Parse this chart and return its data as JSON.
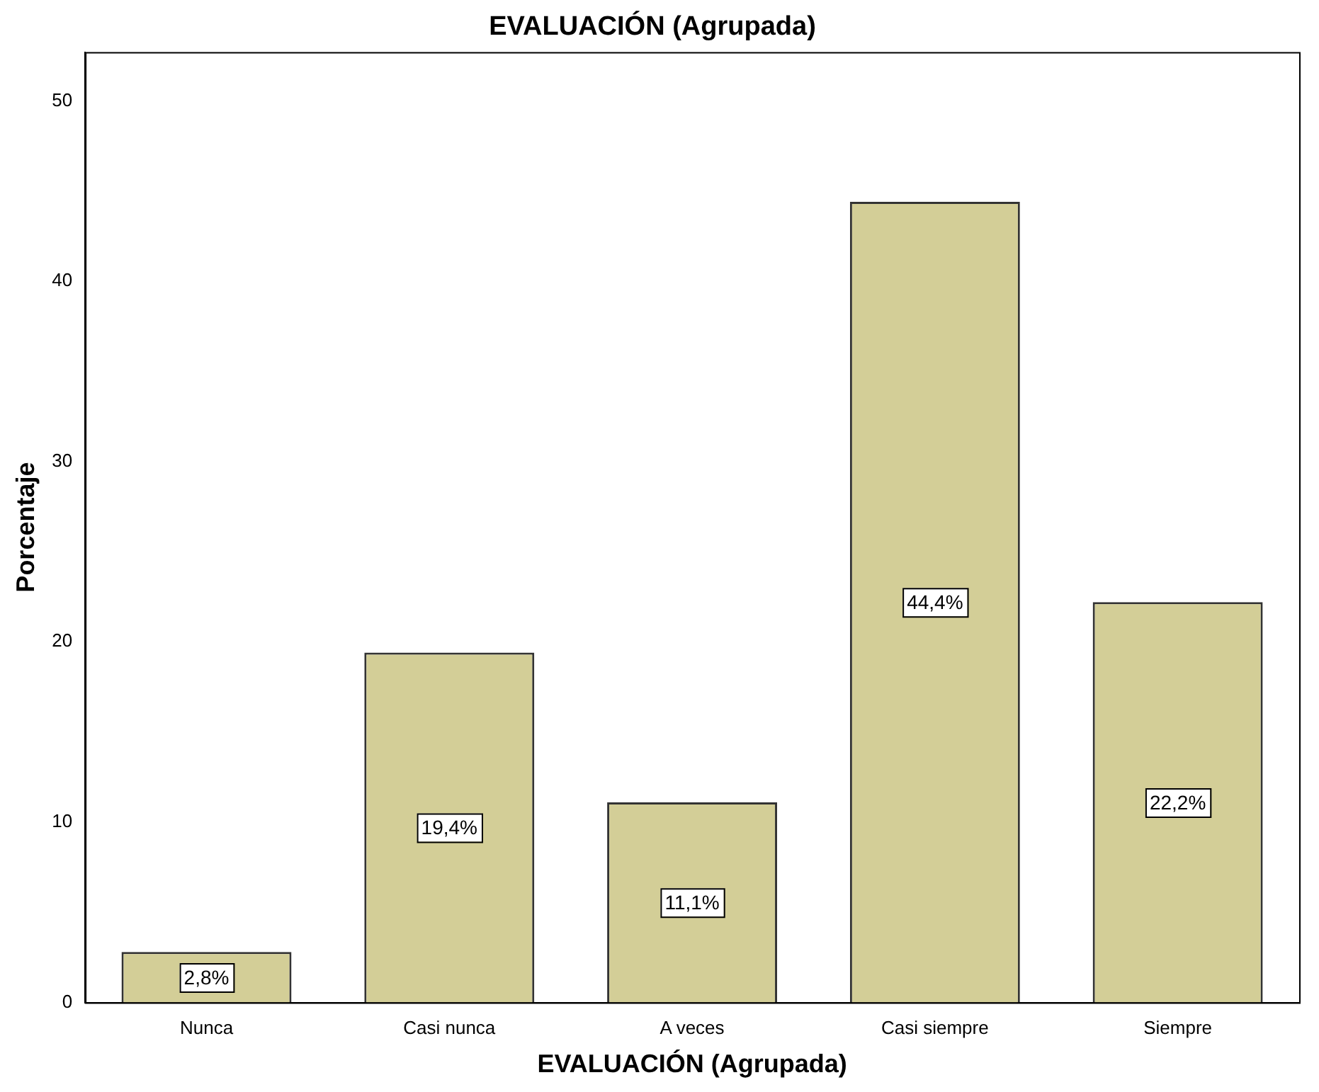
{
  "chart_data": {
    "type": "bar",
    "title": "EVALUACIÓN (Agrupada)",
    "xlabel": "EVALUACIÓN (Agrupada)",
    "ylabel": "Porcentaje",
    "categories": [
      "Nunca",
      "Casi nunca",
      "A veces",
      "Casi siempre",
      "Siempre"
    ],
    "values": [
      2.8,
      19.4,
      11.1,
      44.4,
      22.2
    ],
    "value_labels": [
      "2,8%",
      "19,4%",
      "11,1%",
      "44,4%",
      "22,2%"
    ],
    "color": "#d3ce97",
    "ylim": [
      0,
      52.7
    ],
    "yticks": [
      0,
      10,
      20,
      30,
      40,
      50
    ]
  }
}
